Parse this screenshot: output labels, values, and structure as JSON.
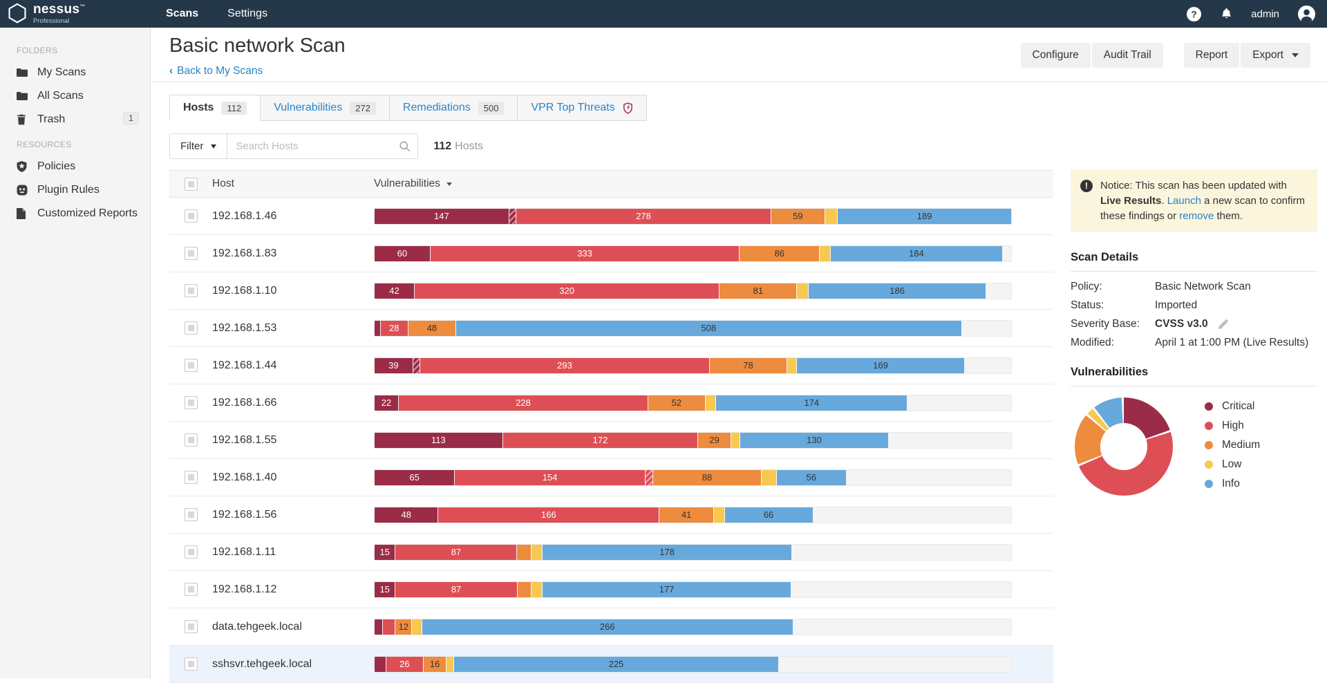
{
  "topnav": {
    "brand": "nessus",
    "brand_tm": "™",
    "brand_sub": "Professional",
    "user": "admin",
    "items": [
      {
        "label": "Scans",
        "active": true
      },
      {
        "label": "Settings",
        "active": false
      }
    ]
  },
  "sidebar": {
    "sections": [
      {
        "title": "FOLDERS",
        "items": [
          {
            "icon": "folder-icon",
            "label": "My Scans"
          },
          {
            "icon": "folder-icon",
            "label": "All Scans"
          },
          {
            "icon": "trash-icon",
            "label": "Trash",
            "badge": "1"
          }
        ]
      },
      {
        "title": "RESOURCES",
        "items": [
          {
            "icon": "shield-icon",
            "label": "Policies"
          },
          {
            "icon": "plug-icon",
            "label": "Plugin Rules"
          },
          {
            "icon": "document-icon",
            "label": "Customized Reports"
          }
        ]
      }
    ]
  },
  "header": {
    "title": "Basic network Scan",
    "back": "Back to My Scans",
    "button_groups": [
      [
        {
          "label": "Configure"
        },
        {
          "label": "Audit Trail"
        }
      ],
      [
        {
          "label": "Report"
        },
        {
          "label": "Export",
          "caret": true
        }
      ]
    ]
  },
  "tabs": [
    {
      "label": "Hosts",
      "badge": "112",
      "active": true
    },
    {
      "label": "Vulnerabilities",
      "badge": "272",
      "active": false
    },
    {
      "label": "Remediations",
      "badge": "500",
      "active": false
    },
    {
      "label": "VPR Top Threats",
      "icon": "vpr-shield-icon",
      "active": false
    }
  ],
  "filter": {
    "button": "Filter",
    "placeholder": "Search Hosts",
    "count": "112",
    "count_label": "Hosts"
  },
  "severity_colors": {
    "critical": "#9B2C47",
    "high": "#DE4F55",
    "medium": "#ED8B3E",
    "low": "#F8C851",
    "info": "#67A9DC"
  },
  "table": {
    "col_host": "Host",
    "col_vuln": "Vulnerabilities",
    "rows": [
      {
        "host": "192.168.1.46",
        "segments": [
          {
            "sev": "critical",
            "value": 147,
            "label": "147"
          },
          {
            "sev": "critical",
            "value": 8,
            "label": "",
            "hatch": true
          },
          {
            "sev": "high",
            "value": 278,
            "label": "278"
          },
          {
            "sev": "medium",
            "value": 59,
            "label": "59"
          },
          {
            "sev": "low",
            "value": 14,
            "label": ""
          },
          {
            "sev": "info",
            "value": 189,
            "label": "189"
          }
        ]
      },
      {
        "host": "192.168.1.83",
        "segments": [
          {
            "sev": "critical",
            "value": 60,
            "label": "60"
          },
          {
            "sev": "high",
            "value": 333,
            "label": "333"
          },
          {
            "sev": "medium",
            "value": 86,
            "label": "86"
          },
          {
            "sev": "low",
            "value": 12,
            "label": ""
          },
          {
            "sev": "info",
            "value": 184,
            "label": "184"
          }
        ]
      },
      {
        "host": "192.168.1.10",
        "segments": [
          {
            "sev": "critical",
            "value": 42,
            "label": "42"
          },
          {
            "sev": "high",
            "value": 320,
            "label": "320"
          },
          {
            "sev": "medium",
            "value": 81,
            "label": "81"
          },
          {
            "sev": "low",
            "value": 12,
            "label": ""
          },
          {
            "sev": "info",
            "value": 186,
            "label": "186"
          }
        ]
      },
      {
        "host": "192.168.1.53",
        "segments": [
          {
            "sev": "critical",
            "value": 6,
            "label": ""
          },
          {
            "sev": "high",
            "value": 28,
            "label": "28"
          },
          {
            "sev": "medium",
            "value": 48,
            "label": "48"
          },
          {
            "sev": "info",
            "value": 508,
            "label": "508"
          }
        ]
      },
      {
        "host": "192.168.1.44",
        "segments": [
          {
            "sev": "critical",
            "value": 39,
            "label": "39"
          },
          {
            "sev": "critical",
            "value": 7,
            "label": "",
            "hatch": true
          },
          {
            "sev": "high",
            "value": 293,
            "label": "293"
          },
          {
            "sev": "medium",
            "value": 78,
            "label": "78"
          },
          {
            "sev": "low",
            "value": 10,
            "label": ""
          },
          {
            "sev": "info",
            "value": 169,
            "label": "169"
          }
        ]
      },
      {
        "host": "192.168.1.66",
        "segments": [
          {
            "sev": "critical",
            "value": 22,
            "label": "22"
          },
          {
            "sev": "high",
            "value": 228,
            "label": "228"
          },
          {
            "sev": "medium",
            "value": 52,
            "label": "52"
          },
          {
            "sev": "low",
            "value": 10,
            "label": ""
          },
          {
            "sev": "info",
            "value": 174,
            "label": "174"
          }
        ]
      },
      {
        "host": "192.168.1.55",
        "segments": [
          {
            "sev": "critical",
            "value": 113,
            "label": "113"
          },
          {
            "sev": "high",
            "value": 172,
            "label": "172"
          },
          {
            "sev": "medium",
            "value": 29,
            "label": "29"
          },
          {
            "sev": "low",
            "value": 8,
            "label": ""
          },
          {
            "sev": "info",
            "value": 130,
            "label": "130"
          }
        ]
      },
      {
        "host": "192.168.1.40",
        "segments": [
          {
            "sev": "critical",
            "value": 65,
            "label": "65"
          },
          {
            "sev": "high",
            "value": 154,
            "label": "154"
          },
          {
            "sev": "high",
            "value": 6,
            "label": "",
            "hatch": true
          },
          {
            "sev": "medium",
            "value": 88,
            "label": "88"
          },
          {
            "sev": "low",
            "value": 12,
            "label": ""
          },
          {
            "sev": "info",
            "value": 56,
            "label": "56"
          }
        ]
      },
      {
        "host": "192.168.1.56",
        "segments": [
          {
            "sev": "critical",
            "value": 48,
            "label": "48"
          },
          {
            "sev": "high",
            "value": 166,
            "label": "166"
          },
          {
            "sev": "medium",
            "value": 41,
            "label": "41"
          },
          {
            "sev": "low",
            "value": 8,
            "label": ""
          },
          {
            "sev": "info",
            "value": 66,
            "label": "66"
          }
        ]
      },
      {
        "host": "192.168.1.11",
        "segments": [
          {
            "sev": "critical",
            "value": 15,
            "label": "15"
          },
          {
            "sev": "high",
            "value": 87,
            "label": "87"
          },
          {
            "sev": "medium",
            "value": 10,
            "label": ""
          },
          {
            "sev": "low",
            "value": 8,
            "label": ""
          },
          {
            "sev": "info",
            "value": 178,
            "label": "178"
          }
        ]
      },
      {
        "host": "192.168.1.12",
        "segments": [
          {
            "sev": "critical",
            "value": 15,
            "label": "15"
          },
          {
            "sev": "high",
            "value": 87,
            "label": "87"
          },
          {
            "sev": "medium",
            "value": 10,
            "label": ""
          },
          {
            "sev": "low",
            "value": 8,
            "label": ""
          },
          {
            "sev": "info",
            "value": 177,
            "label": "177"
          }
        ]
      },
      {
        "host": "data.tehgeek.local",
        "segments": [
          {
            "sev": "critical",
            "value": 6,
            "label": ""
          },
          {
            "sev": "high",
            "value": 9,
            "label": ""
          },
          {
            "sev": "medium",
            "value": 12,
            "label": "12"
          },
          {
            "sev": "low",
            "value": 7,
            "label": ""
          },
          {
            "sev": "info",
            "value": 266,
            "label": "266"
          }
        ]
      },
      {
        "host": "sshsvr.tehgeek.local",
        "highlight": true,
        "segments": [
          {
            "sev": "critical",
            "value": 8,
            "label": ""
          },
          {
            "sev": "high",
            "value": 26,
            "label": "26"
          },
          {
            "sev": "medium",
            "value": 16,
            "label": "16"
          },
          {
            "sev": "low",
            "value": 5,
            "label": ""
          },
          {
            "sev": "info",
            "value": 225,
            "label": "225"
          }
        ]
      }
    ]
  },
  "notice": {
    "parts": [
      {
        "t": "Notice: This scan has been updated with "
      },
      {
        "t": "Live Results",
        "b": true
      },
      {
        "t": ". "
      },
      {
        "t": "Launch",
        "link": true
      },
      {
        "t": " a new scan to confirm these findings or "
      },
      {
        "t": "remove",
        "link": true
      },
      {
        "t": " them."
      }
    ]
  },
  "scan_details": {
    "title": "Scan Details",
    "rows": [
      {
        "label": "Policy:",
        "value": "Basic Network Scan"
      },
      {
        "label": "Status:",
        "value": "Imported"
      },
      {
        "label": "Severity Base:",
        "value": "CVSS v3.0",
        "bold": true,
        "edit": true
      },
      {
        "label": "Modified:",
        "value": "April 1 at 1:00 PM (Live Results)"
      }
    ]
  },
  "vuln_panel": {
    "title": "Vulnerabilities"
  },
  "chart_data": {
    "type": "pie",
    "donut": true,
    "title": "Vulnerabilities",
    "legend_position": "right",
    "labels": [
      "Critical",
      "High",
      "Medium",
      "Low",
      "Info"
    ],
    "values": [
      19.5,
      48.2,
      16.9,
      2.3,
      9.6
    ],
    "unit": "percent_of_total_vulnerabilities",
    "colors": [
      "#9B2C47",
      "#DE4F55",
      "#ED8B3E",
      "#F8C851",
      "#67A9DC"
    ]
  }
}
